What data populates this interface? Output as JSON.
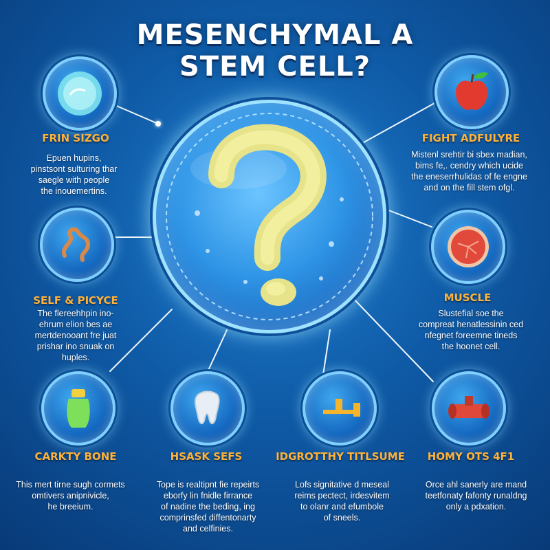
{
  "title": {
    "line1": "MESENCHYMAL A",
    "line2": "STEM CELL?"
  },
  "nodes": {
    "top_left": {
      "label": "FRIN SIZGO",
      "icon": "cell-dish-icon",
      "text": [
        "Epuen hupins,",
        "pinstsont sulturing thar",
        "saegle with people",
        "the inouemertins."
      ]
    },
    "top_right": {
      "label": "FIGHT ADFULYRE",
      "icon": "apple-icon",
      "text": [
        "Mistenl srehtir bi sbex madian,",
        "bims fe,. cendry which ucide",
        "the eneserrhulidas of fe engne",
        "and on the fill stem ofgl."
      ]
    },
    "mid_left": {
      "label": "SELF & PICYCE",
      "icon": "worm-icon",
      "text": [
        "The flereehhpin ino-",
        "ehrum elion bes ae",
        "mertdenooant fre juat",
        "prishar ino snuak on",
        "huples."
      ]
    },
    "mid_right": {
      "label": "MUSCLE",
      "icon": "muscle-tissue-icon",
      "text": [
        "Slustefial soe the",
        "compreat henatlessinin ced",
        "nfegnet foreemne tineds",
        "the hoonet cell."
      ]
    },
    "bottom_1": {
      "label": "CARKTY BONE",
      "icon": "bottle-icon",
      "text": [
        "This mert tirne sugh cormets",
        "omtivers anipnivicle,",
        "he breeium."
      ]
    },
    "bottom_2": {
      "label": "HSASK SEFS",
      "icon": "tooth-icon",
      "text": [
        "Tope is realtipnt fie repeirts",
        "eborfy lin fnidle firrance",
        "of nadine the beding, ing",
        "comprinsfed diffentonarty",
        "and celfinies."
      ]
    },
    "bottom_3": {
      "label": "IDGROTTHY TITLSUME",
      "icon": "pipe-icon",
      "text": [
        "Lofs signitative d meseal",
        "reims pectect, irdesvitem",
        "to olanr and efumbole",
        "of sneels."
      ]
    },
    "bottom_4": {
      "label": "HOMY OTS 4F1",
      "icon": "vessel-icon",
      "text": [
        "Orce ahl sanerly are mand",
        "teetfonaty fafonty runaldng",
        "only a pdxation."
      ]
    }
  },
  "colors": {
    "label": "#ffb23a",
    "background": "#0f5aa6",
    "ring": "#7fd0ff"
  }
}
